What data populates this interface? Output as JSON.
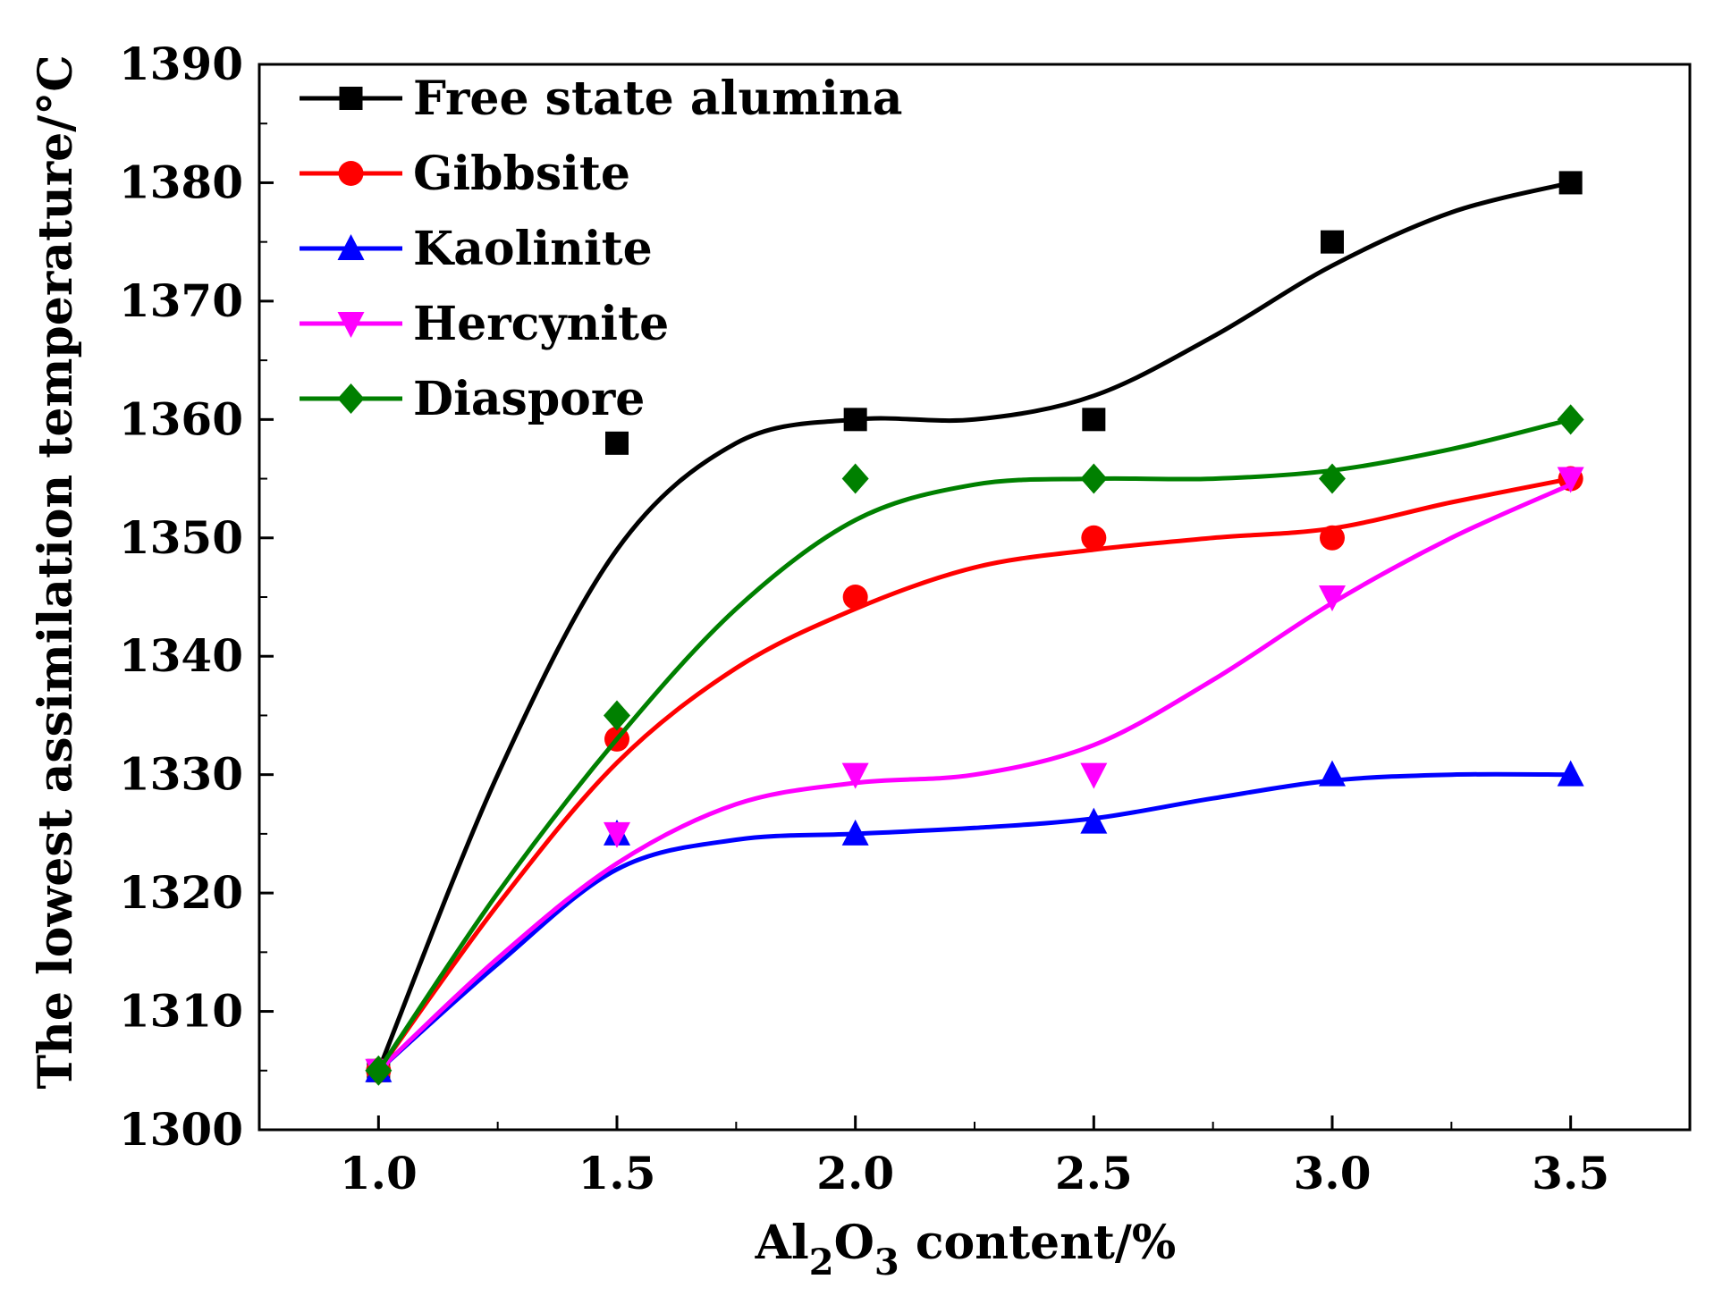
{
  "chart_data": {
    "type": "line",
    "title": "",
    "xlabel": {
      "prefix": "Al",
      "sub1": "2",
      "middle": "O",
      "sub2": "3",
      "suffix": " content/%"
    },
    "ylabel": "The lowest assimilation temperature/°C",
    "xlim": [
      0.75,
      3.75
    ],
    "ylim": [
      1300,
      1390
    ],
    "x_ticks": [
      1.0,
      1.5,
      2.0,
      2.5,
      3.0,
      3.5
    ],
    "x_tick_labels": [
      "1.0",
      "1.5",
      "2.0",
      "2.5",
      "3.0",
      "3.5"
    ],
    "y_ticks": [
      1300,
      1310,
      1320,
      1330,
      1340,
      1350,
      1360,
      1370,
      1380,
      1390
    ],
    "y_tick_labels": [
      "1300",
      "1310",
      "1320",
      "1330",
      "1340",
      "1350",
      "1360",
      "1370",
      "1380",
      "1390"
    ],
    "x": [
      1.0,
      1.5,
      2.0,
      2.5,
      3.0,
      3.5
    ],
    "legend_position": "top-left",
    "series": [
      {
        "name": "Free state alumina",
        "color": "#000000",
        "marker": "square",
        "values": [
          1305,
          1358,
          1360,
          1360,
          1375,
          1380
        ],
        "fit": [
          [
            1.0,
            1305
          ],
          [
            1.25,
            1330
          ],
          [
            1.5,
            1349
          ],
          [
            1.75,
            1358
          ],
          [
            2.0,
            1360
          ],
          [
            2.25,
            1360
          ],
          [
            2.5,
            1362
          ],
          [
            2.75,
            1367
          ],
          [
            3.0,
            1373
          ],
          [
            3.25,
            1377.5
          ],
          [
            3.5,
            1380
          ]
        ]
      },
      {
        "name": "Gibbsite",
        "color": "#ff0000",
        "marker": "circle",
        "values": [
          1305,
          1333,
          1345,
          1350,
          1350,
          1355
        ],
        "fit": [
          [
            1.0,
            1305
          ],
          [
            1.25,
            1319
          ],
          [
            1.5,
            1331
          ],
          [
            1.75,
            1339
          ],
          [
            2.0,
            1344
          ],
          [
            2.25,
            1347.5
          ],
          [
            2.5,
            1349
          ],
          [
            2.75,
            1350
          ],
          [
            3.0,
            1350.8
          ],
          [
            3.25,
            1353
          ],
          [
            3.5,
            1355
          ]
        ]
      },
      {
        "name": "Kaolinite",
        "color": "#0000ff",
        "marker": "triangle-up",
        "values": [
          1305,
          1325,
          1325,
          1326,
          1330,
          1330
        ],
        "fit": [
          [
            1.0,
            1305
          ],
          [
            1.25,
            1314
          ],
          [
            1.5,
            1322
          ],
          [
            1.75,
            1324.5
          ],
          [
            2.0,
            1325
          ],
          [
            2.25,
            1325.5
          ],
          [
            2.5,
            1326.3
          ],
          [
            2.75,
            1328
          ],
          [
            3.0,
            1329.5
          ],
          [
            3.25,
            1330
          ],
          [
            3.5,
            1330
          ]
        ]
      },
      {
        "name": "Hercynite",
        "color": "#ff00ff",
        "marker": "triangle-down",
        "values": [
          1305,
          1325,
          1330,
          1330,
          1345,
          1355
        ],
        "fit": [
          [
            1.0,
            1305
          ],
          [
            1.25,
            1314.5
          ],
          [
            1.5,
            1322.5
          ],
          [
            1.75,
            1327.5
          ],
          [
            2.0,
            1329.3
          ],
          [
            2.25,
            1330
          ],
          [
            2.5,
            1332.5
          ],
          [
            2.75,
            1338
          ],
          [
            3.0,
            1344.5
          ],
          [
            3.25,
            1350
          ],
          [
            3.5,
            1354.5
          ]
        ]
      },
      {
        "name": "Diaspore",
        "color": "#008000",
        "marker": "diamond",
        "values": [
          1305,
          1335,
          1355,
          1355,
          1355,
          1360
        ],
        "fit": [
          [
            1.0,
            1305
          ],
          [
            1.25,
            1320
          ],
          [
            1.5,
            1333
          ],
          [
            1.75,
            1344
          ],
          [
            2.0,
            1351.5
          ],
          [
            2.25,
            1354.5
          ],
          [
            2.5,
            1355
          ],
          [
            2.75,
            1355
          ],
          [
            3.0,
            1355.7
          ],
          [
            3.25,
            1357.5
          ],
          [
            3.5,
            1360
          ]
        ]
      }
    ]
  }
}
